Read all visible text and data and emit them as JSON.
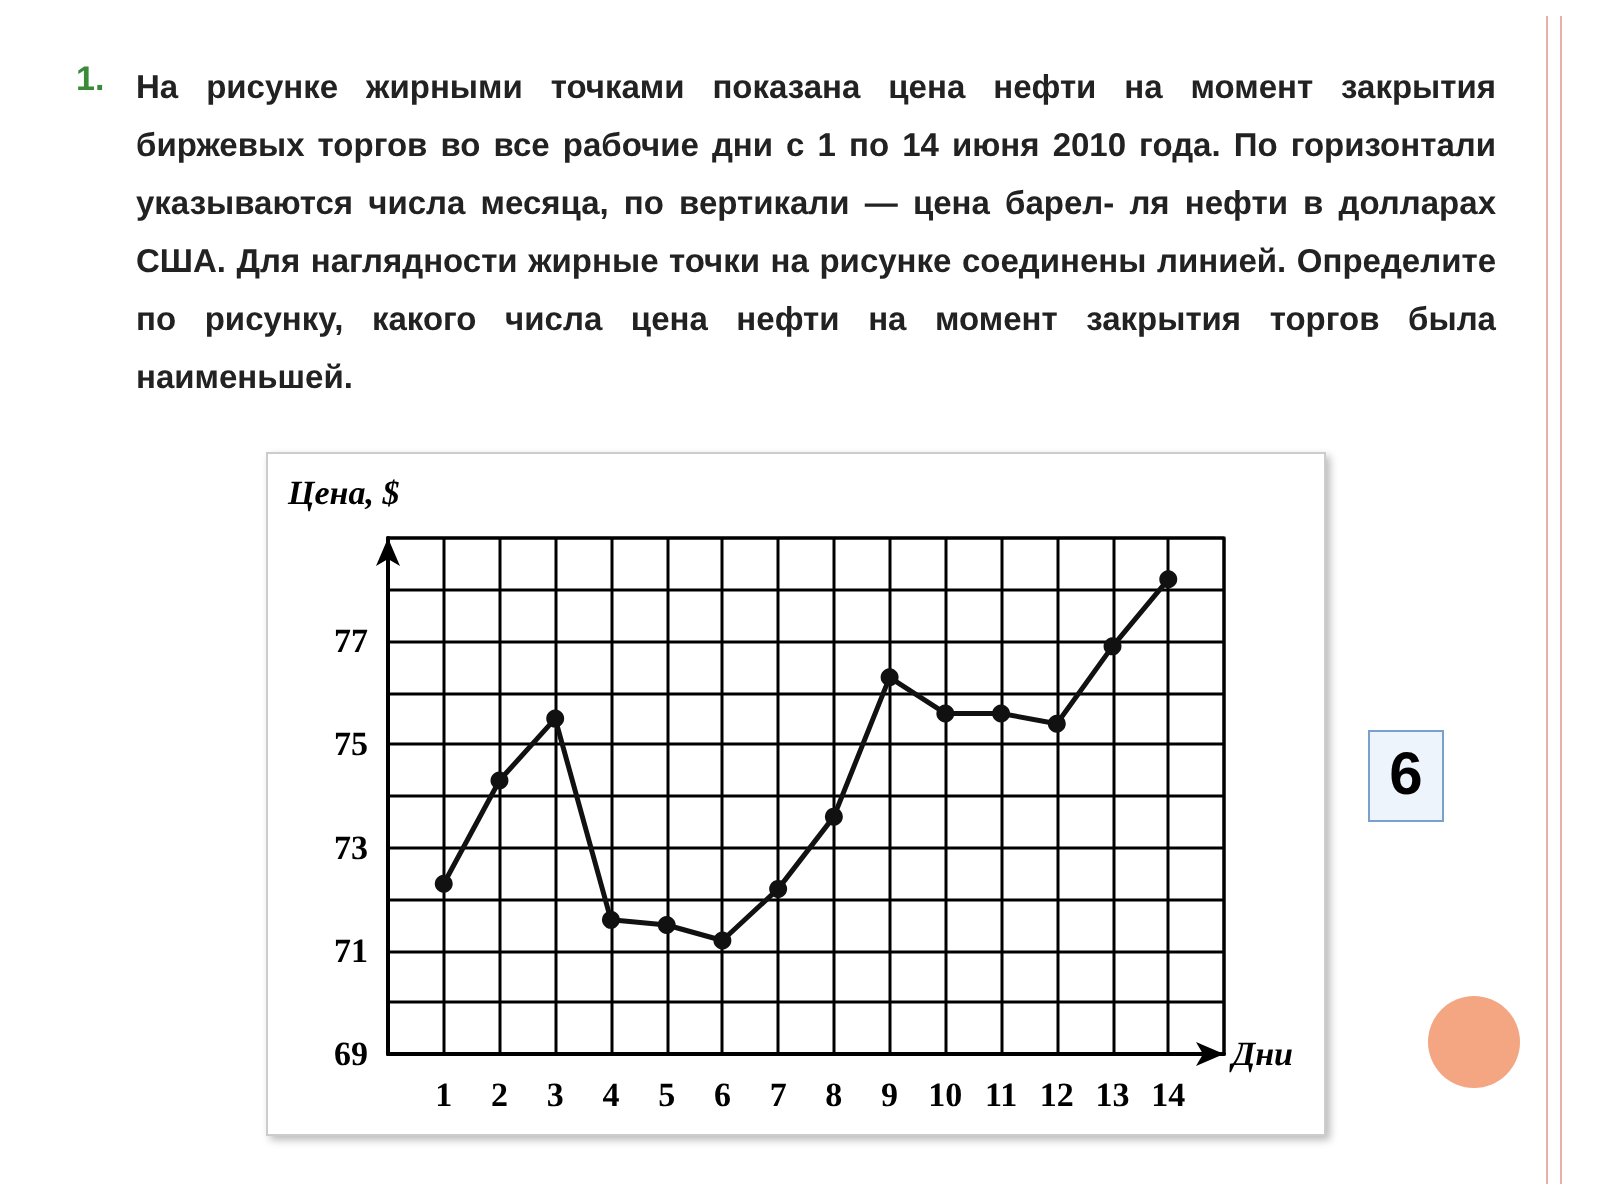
{
  "chart_data": {
    "type": "line",
    "annotations": [
      "1.",
      "На рисунке  жирными точками показана цена нефти на момент закрытия биржевых торгов во все рабочие дни с 1 по 14 июня 2010 года. По горизонтали указываются числа месяца, по вертикали — цена барел- ля нефти в долларах США. Для наглядности жирные точки на рисунке соединены линией. Определите по рисунку, какого числа цена нефти на момент закрытия торгов была наименьшей.",
      "6"
    ],
    "xlabel": "Дни",
    "ylabel": "Цена, $",
    "x": [
      1,
      2,
      3,
      4,
      5,
      6,
      7,
      8,
      9,
      10,
      11,
      12,
      13,
      14
    ],
    "series": [
      {
        "color": "#111111",
        "values": [
          72.3,
          74.3,
          75.5,
          71.6,
          71.5,
          71.2,
          72.2,
          73.6,
          76.3,
          75.6,
          75.6,
          75.4,
          76.9,
          78.2
        ]
      }
    ],
    "xlim": [
      0,
      15
    ],
    "xticks": [
      {
        "value": 0,
        "label": null
      },
      1,
      2,
      3,
      4,
      5,
      6,
      7,
      8,
      9,
      10,
      11,
      12,
      13,
      14,
      {
        "value": 15,
        "label": null
      }
    ],
    "ylim": [
      69,
      79
    ],
    "yticks": [
      69,
      {
        "value": 70,
        "label": null
      },
      71,
      {
        "value": 72,
        "label": null
      },
      73,
      {
        "value": 74,
        "label": null
      },
      75,
      {
        "value": 76,
        "label": null
      },
      77,
      {
        "value": 78,
        "label": null
      },
      {
        "value": 79,
        "label": null
      }
    ],
    "grid": true,
    "marker": "circle",
    "line_style": "solid"
  }
}
